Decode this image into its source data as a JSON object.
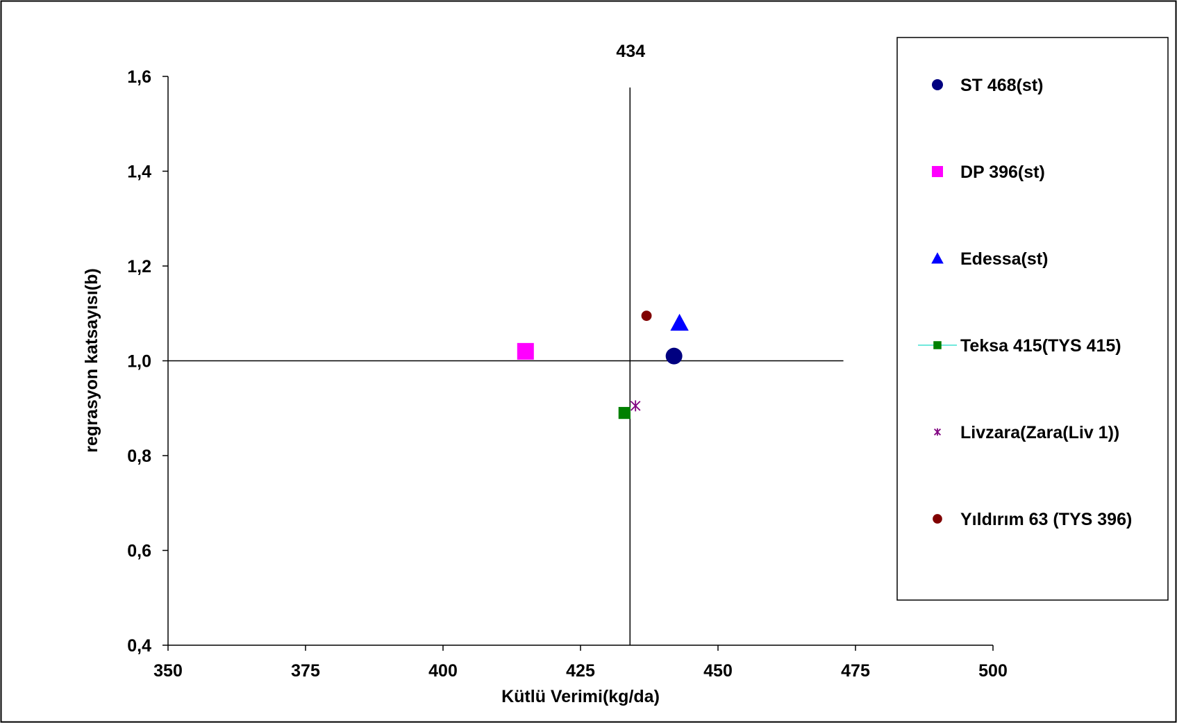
{
  "chart_data": {
    "type": "scatter",
    "title": "",
    "xlabel": "Kütlü Verimi(kg/da)",
    "ylabel": "regrasyon katsayısı(b)",
    "xlim": [
      350,
      500
    ],
    "ylim": [
      0.4,
      1.6
    ],
    "x_ticks": [
      350,
      375,
      400,
      425,
      450,
      475,
      500
    ],
    "x_tick_labels": [
      "350",
      "375",
      "400",
      "425",
      "450",
      "475",
      "500"
    ],
    "y_ticks": [
      0.4,
      0.6,
      0.8,
      1.0,
      1.2,
      1.4,
      1.6
    ],
    "y_tick_labels": [
      "0,4",
      "0,6",
      "0,8",
      "1,0",
      "1,2",
      "1,4",
      "1,6"
    ],
    "grid": false,
    "legend_position": "right",
    "reference_lines": {
      "vertical_x": 434,
      "vertical_label": "434",
      "horizontal_y": 1.0
    },
    "series": [
      {
        "name": "ST 468(st)",
        "marker": "circle",
        "color": "#000080",
        "x": [
          442
        ],
        "y": [
          1.01
        ]
      },
      {
        "name": "DP 396(st)",
        "marker": "square",
        "color": "#FF00FF",
        "x": [
          415
        ],
        "y": [
          1.02
        ]
      },
      {
        "name": "Edessa(st)",
        "marker": "triangle",
        "color": "#0000FF",
        "x": [
          443
        ],
        "y": [
          1.08
        ]
      },
      {
        "name": "Teksa 415(TYS 415)",
        "marker": "square-line",
        "color": "#008000",
        "x": [
          433
        ],
        "y": [
          0.89
        ]
      },
      {
        "name": "Livzara(Zara(Liv 1))",
        "marker": "star",
        "color": "#800080",
        "x": [
          435
        ],
        "y": [
          0.905
        ]
      },
      {
        "name": "Yıldırım 63 (TYS 396)",
        "marker": "circle-small",
        "color": "#800000",
        "x": [
          437
        ],
        "y": [
          1.095
        ]
      }
    ]
  }
}
